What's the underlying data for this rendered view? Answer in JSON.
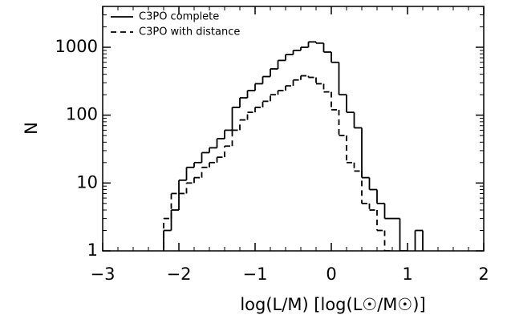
{
  "chart_data": {
    "type": "histogram",
    "xlabel": "log(L/M)  [log(L☉/M☉)]",
    "ylabel": "N",
    "bins": [
      -2.2,
      -2.1,
      -2.0,
      -1.9,
      -1.8,
      -1.7,
      -1.6,
      -1.5,
      -1.4,
      -1.3,
      -1.2,
      -1.1,
      -1.0,
      -0.9,
      -0.8,
      -0.7,
      -0.6,
      -0.5,
      -0.4,
      -0.3,
      -0.2,
      -0.1,
      0.0,
      0.1,
      0.2,
      0.3,
      0.4,
      0.5,
      0.6,
      0.7,
      0.8,
      0.9,
      1.0,
      1.1,
      1.2
    ],
    "series": [
      {
        "name": "C3PO complete",
        "color": "#000000",
        "dash": "solid",
        "values": [
          2,
          4,
          11,
          17,
          20,
          28,
          33,
          45,
          60,
          130,
          180,
          230,
          290,
          370,
          480,
          640,
          780,
          900,
          1000,
          1200,
          1150,
          850,
          600,
          200,
          110,
          65,
          12,
          8,
          5,
          3,
          3,
          1,
          0,
          2
        ]
      },
      {
        "name": "C3PO with distance",
        "color": "#000000",
        "dash": "dashed",
        "values": [
          3,
          7,
          7,
          10,
          12,
          17,
          20,
          24,
          35,
          60,
          85,
          110,
          130,
          160,
          200,
          230,
          270,
          330,
          380,
          360,
          290,
          220,
          120,
          50,
          20,
          15,
          5,
          4,
          2,
          1,
          0,
          0,
          0,
          0
        ]
      }
    ],
    "xlim": [
      -3,
      2
    ],
    "xticks": [
      {
        "value": -3,
        "label": "−3"
      },
      {
        "value": -2,
        "label": "−2"
      },
      {
        "value": -1,
        "label": "−1"
      },
      0,
      1,
      2
    ],
    "ylim": [
      1,
      4000
    ],
    "yticks": [
      1,
      10,
      100,
      1000
    ],
    "yscale": "log",
    "legend": "upper left"
  }
}
